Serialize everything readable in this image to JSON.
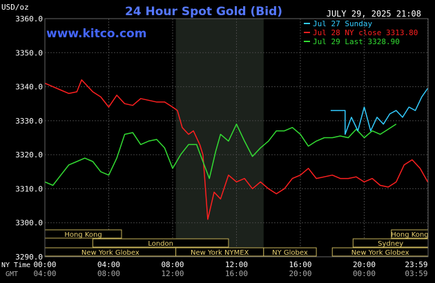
{
  "chart_data": {
    "type": "line",
    "title": "24 Hour Spot Gold (Bid)",
    "watermark": "www.kitco.com",
    "timestamp": "JULY 29, 2025 21:08",
    "ylabel": "USD/oz",
    "ylim": [
      3290,
      3360
    ],
    "yticks": [
      "3360.0",
      "3350.0",
      "3340.0",
      "3330.0",
      "3320.0",
      "3310.0",
      "3300.0",
      "3290.0"
    ],
    "xlim": [
      0,
      24
    ],
    "x_row1_label": "NY Time",
    "x_row2_label": "GMT",
    "xticks_ny": [
      "00:00",
      "04:00",
      "08:00",
      "12:00",
      "16:00",
      "20:00",
      "23:59"
    ],
    "xticks_gmt": [
      "04:00",
      "08:00",
      "12:00",
      "16:00",
      "20:00",
      "00:00",
      "03:59"
    ],
    "xtick_hours": [
      0,
      4,
      8,
      12,
      16,
      20,
      23.98
    ],
    "shaded_region": [
      8.2,
      13.7
    ],
    "grid": true,
    "legend_position": "top-right",
    "series": [
      {
        "name": "Jul 27 Sunday",
        "color": "#33ccff",
        "x": [
          17.9,
          18.8,
          18.8,
          19.2,
          19.6,
          20.0,
          20.4,
          20.8,
          21.2,
          21.6,
          22.0,
          22.4,
          22.8,
          23.2,
          23.6,
          23.98
        ],
        "y": [
          3333.0,
          3333.0,
          3326.0,
          3331.0,
          3327.0,
          3334.0,
          3327.0,
          3331.0,
          3329.0,
          3332.0,
          3333.0,
          3331.0,
          3334.0,
          3333.0,
          3337.0,
          3339.5
        ]
      },
      {
        "name": "Jul 28 NY close 3313.80",
        "color": "#ff2020",
        "x": [
          0.0,
          0.5,
          1.0,
          1.5,
          2.0,
          2.3,
          2.5,
          3.0,
          3.5,
          4.0,
          4.5,
          5.0,
          5.5,
          6.0,
          6.5,
          7.0,
          7.5,
          8.0,
          8.3,
          8.6,
          9.0,
          9.3,
          9.7,
          9.9,
          10.2,
          10.6,
          11.0,
          11.5,
          12.0,
          12.5,
          13.0,
          13.5,
          14.0,
          14.5,
          15.0,
          15.5,
          16.0,
          16.5,
          17.0,
          17.5,
          18.0,
          18.5,
          19.0,
          19.5,
          20.0,
          20.5,
          21.0,
          21.5,
          22.0,
          22.5,
          23.0,
          23.5,
          23.98
        ],
        "y": [
          3341.0,
          3340.0,
          3339.0,
          3338.0,
          3338.5,
          3342.0,
          3341.0,
          3338.5,
          3337.0,
          3334.0,
          3337.5,
          3335.0,
          3334.5,
          3336.5,
          3336.0,
          3335.5,
          3335.5,
          3334.0,
          3333.0,
          3328.0,
          3326.0,
          3327.0,
          3323.0,
          3320.0,
          3301.0,
          3309.0,
          3307.0,
          3314.0,
          3312.0,
          3313.0,
          3310.0,
          3312.0,
          3310.0,
          3308.5,
          3310.0,
          3313.0,
          3314.0,
          3316.0,
          3313.0,
          3313.5,
          3314.0,
          3313.0,
          3313.0,
          3313.5,
          3312.0,
          3313.0,
          3311.0,
          3310.5,
          3312.0,
          3317.0,
          3318.5,
          3316.0,
          3312.0
        ]
      },
      {
        "name": "Jul 29 Last 3328.90",
        "color": "#33dd33",
        "x": [
          0.0,
          0.5,
          1.0,
          1.5,
          2.0,
          2.5,
          3.0,
          3.5,
          4.0,
          4.5,
          5.0,
          5.5,
          6.0,
          6.5,
          7.0,
          7.5,
          8.0,
          8.5,
          9.0,
          9.5,
          9.9,
          10.3,
          10.7,
          11.0,
          11.5,
          12.0,
          12.5,
          13.0,
          13.5,
          14.0,
          14.5,
          15.0,
          15.5,
          16.0,
          16.5,
          17.0,
          17.5,
          18.0,
          18.5,
          19.0,
          19.5,
          20.0,
          20.5,
          21.0,
          21.5,
          22.0
        ],
        "y": [
          3312.0,
          3311.0,
          3314.0,
          3317.0,
          3318.0,
          3319.0,
          3318.0,
          3315.0,
          3314.0,
          3319.0,
          3326.0,
          3326.5,
          3323.0,
          3324.0,
          3324.5,
          3322.0,
          3316.0,
          3320.0,
          3323.0,
          3323.0,
          3318.0,
          3313.0,
          3321.0,
          3326.0,
          3324.0,
          3329.0,
          3324.0,
          3319.5,
          3322.0,
          3324.0,
          3327.0,
          3327.0,
          3328.0,
          3326.0,
          3322.5,
          3324.0,
          3325.0,
          3325.0,
          3325.5,
          3325.0,
          3327.5,
          3325.0,
          3327.0,
          3326.0,
          3327.5,
          3329.0
        ]
      }
    ],
    "sessions": [
      {
        "name": "Hong Kong",
        "start": 0,
        "end": 4.8,
        "row": 0
      },
      {
        "name": "Hong Kong",
        "start": 21.7,
        "end": 24,
        "row": 0
      },
      {
        "name": "London",
        "start": 3.0,
        "end": 11.5,
        "row": 1
      },
      {
        "name": "Sydney",
        "start": 19.3,
        "end": 24,
        "row": 1
      },
      {
        "name": "New York Globex",
        "start": 0,
        "end": 8.2,
        "row": 2
      },
      {
        "name": "New York NYMEX",
        "start": 8.2,
        "end": 13.7,
        "row": 2
      },
      {
        "name": "NY Globex",
        "start": 13.7,
        "end": 17.0,
        "row": 2
      },
      {
        "name": "New York Globex",
        "start": 18.0,
        "end": 24,
        "row": 2
      }
    ]
  }
}
